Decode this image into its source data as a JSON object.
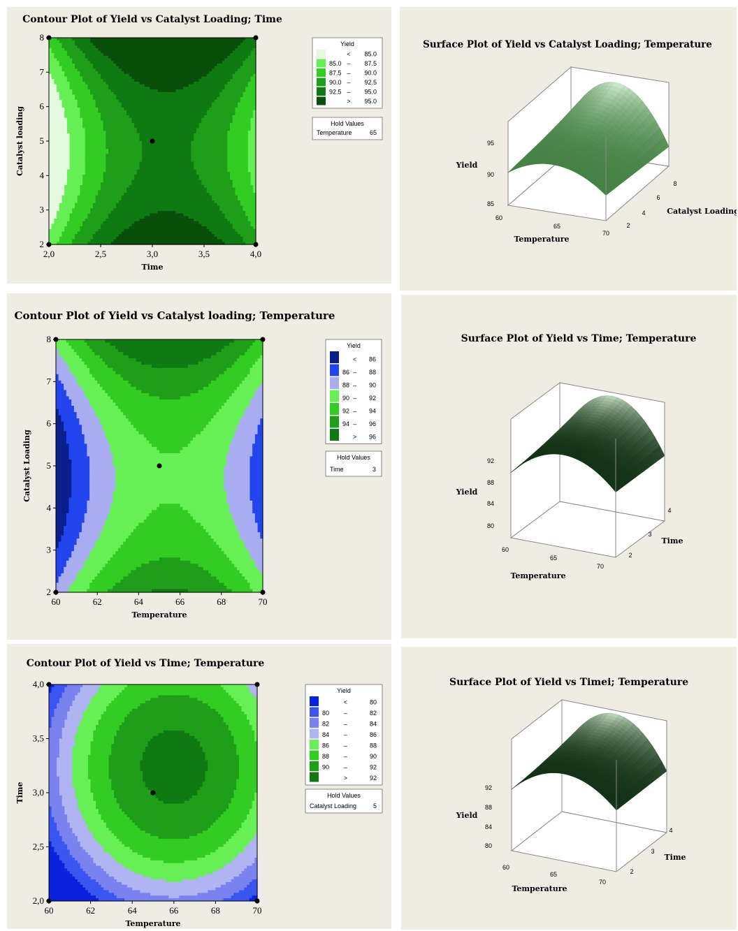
{
  "chart_data": [
    {
      "id": "p1",
      "type": "contour",
      "title": "Contour Plot of Yield vs Catalyst Loading; Time",
      "xlabel": "Time",
      "ylabel": "Catalyst loading",
      "xlim": [
        2.0,
        4.0
      ],
      "ylim": [
        2,
        8
      ],
      "xticks": [
        "2,0",
        "2,5",
        "3,0",
        "3,5",
        "4,0"
      ],
      "xtick_values": [
        2.0,
        2.5,
        3.0,
        3.5,
        4.0
      ],
      "yticks": [
        "2",
        "3",
        "4",
        "5",
        "6",
        "7",
        "8"
      ],
      "ytick_values": [
        2,
        3,
        4,
        5,
        6,
        7,
        8
      ],
      "center_point": [
        3.0,
        5
      ],
      "corner_points": [
        [
          2.0,
          2
        ],
        [
          4.0,
          2
        ],
        [
          2.0,
          8
        ],
        [
          4.0,
          8
        ]
      ],
      "legend": {
        "title": "Yield",
        "entries": [
          {
            "op": "<",
            "hi": "85.0",
            "color": "#e5f8e0"
          },
          {
            "lo": "85.0",
            "op": "–",
            "hi": "87.5",
            "color": "#66ee55"
          },
          {
            "lo": "87.5",
            "op": "–",
            "hi": "90.0",
            "color": "#33cc22"
          },
          {
            "lo": "90.0",
            "op": "–",
            "hi": "92.5",
            "color": "#1f9e1a"
          },
          {
            "lo": "92.5",
            "op": "–",
            "hi": "95.0",
            "color": "#0f7a12"
          },
          {
            "op": ">",
            "hi": "95.0",
            "color": "#0a4e0c"
          }
        ]
      },
      "hold": {
        "title": "Hold Values",
        "name": "Temperature",
        "value": "65"
      }
    },
    {
      "id": "p2",
      "type": "contour",
      "title": "Contour Plot of Yield vs Catalyst loading; Temperature",
      "xlabel": "Temperature",
      "ylabel": "Catalyst Loading",
      "xlim": [
        60,
        70
      ],
      "ylim": [
        2,
        8
      ],
      "xticks": [
        "60",
        "62",
        "64",
        "66",
        "68",
        "70"
      ],
      "xtick_values": [
        60,
        62,
        64,
        66,
        68,
        70
      ],
      "yticks": [
        "2",
        "3",
        "4",
        "5",
        "6",
        "7",
        "8"
      ],
      "ytick_values": [
        2,
        3,
        4,
        5,
        6,
        7,
        8
      ],
      "center_point": [
        65,
        5
      ],
      "corner_points": [
        [
          60,
          2
        ],
        [
          70,
          2
        ],
        [
          60,
          8
        ],
        [
          70,
          8
        ]
      ],
      "legend": {
        "title": "Yield",
        "entries": [
          {
            "op": "<",
            "hi": "86",
            "color": "#0a1f8c"
          },
          {
            "lo": "86",
            "op": "–",
            "hi": "88",
            "color": "#2244ee"
          },
          {
            "lo": "88",
            "op": "–",
            "hi": "90",
            "color": "#a9acf0"
          },
          {
            "lo": "90",
            "op": "–",
            "hi": "92",
            "color": "#66f055"
          },
          {
            "lo": "92",
            "op": "–",
            "hi": "94",
            "color": "#33cc22"
          },
          {
            "lo": "94",
            "op": "–",
            "hi": "96",
            "color": "#1f9e1a"
          },
          {
            "op": ">",
            "hi": "96",
            "color": "#0f7a12"
          }
        ]
      },
      "hold": {
        "title": "Hold Values",
        "name": "Time",
        "value": "3"
      }
    },
    {
      "id": "p3",
      "type": "contour",
      "title": "Contour Plot of Yield vs Time; Temperature",
      "xlabel": "Temperature",
      "ylabel": "Time",
      "xlim": [
        60,
        70
      ],
      "ylim": [
        2.0,
        4.0
      ],
      "xticks": [
        "60",
        "62",
        "64",
        "66",
        "68",
        "70"
      ],
      "xtick_values": [
        60,
        62,
        64,
        66,
        68,
        70
      ],
      "yticks": [
        "2,0",
        "2,5",
        "3,0",
        "3,5",
        "4,0"
      ],
      "ytick_values": [
        2.0,
        2.5,
        3.0,
        3.5,
        4.0
      ],
      "center_point": [
        65,
        3.0
      ],
      "corner_points": [
        [
          60,
          2.0
        ],
        [
          70,
          2.0
        ],
        [
          60,
          4.0
        ],
        [
          70,
          4.0
        ]
      ],
      "legend": {
        "title": "Yield",
        "entries": [
          {
            "op": "<",
            "hi": "80",
            "color": "#0a22dd"
          },
          {
            "lo": "80",
            "op": "–",
            "hi": "82",
            "color": "#3a55f0"
          },
          {
            "lo": "82",
            "op": "–",
            "hi": "84",
            "color": "#7a82f0"
          },
          {
            "lo": "84",
            "op": "–",
            "hi": "86",
            "color": "#b0b4f2"
          },
          {
            "lo": "86",
            "op": "–",
            "hi": "88",
            "color": "#66f055"
          },
          {
            "lo": "88",
            "op": "–",
            "hi": "90",
            "color": "#33cc22"
          },
          {
            "lo": "90",
            "op": "–",
            "hi": "92",
            "color": "#1f9e1a"
          },
          {
            "op": ">",
            "hi": "92",
            "color": "#0f7a12"
          }
        ]
      },
      "hold": {
        "title": "Hold Values",
        "name": "Catalyst Loading",
        "value": "5"
      }
    },
    {
      "id": "s1",
      "type": "surface",
      "title": "Surface Plot of Yield vs Catalyst Loading; Temperature",
      "zlabel": "Yield",
      "xlabel": "Temperature",
      "ylabel": "Catalyst Loading",
      "xticks": [
        "60",
        "65",
        "70"
      ],
      "yticks": [
        "2",
        "4",
        "6",
        "8"
      ],
      "zticks": [
        "85",
        "90",
        "95"
      ]
    },
    {
      "id": "s2",
      "type": "surface",
      "title": "Surface Plot of Yield vs Time; Temperature",
      "zlabel": "Yield",
      "xlabel": "Temperature",
      "ylabel": "Time",
      "xticks": [
        "60",
        "65",
        "70"
      ],
      "yticks": [
        "2",
        "3",
        "4"
      ],
      "zticks": [
        "80",
        "84",
        "88",
        "92"
      ]
    },
    {
      "id": "s3",
      "type": "surface",
      "title": "Surface Plot of Yield vs Timei; Temperature",
      "zlabel": "Yield",
      "xlabel": "Temperature",
      "ylabel": "Time",
      "xticks": [
        "60",
        "65",
        "70"
      ],
      "yticks": [
        "2",
        "3",
        "4"
      ],
      "zticks": [
        "80",
        "84",
        "88",
        "92"
      ]
    }
  ]
}
